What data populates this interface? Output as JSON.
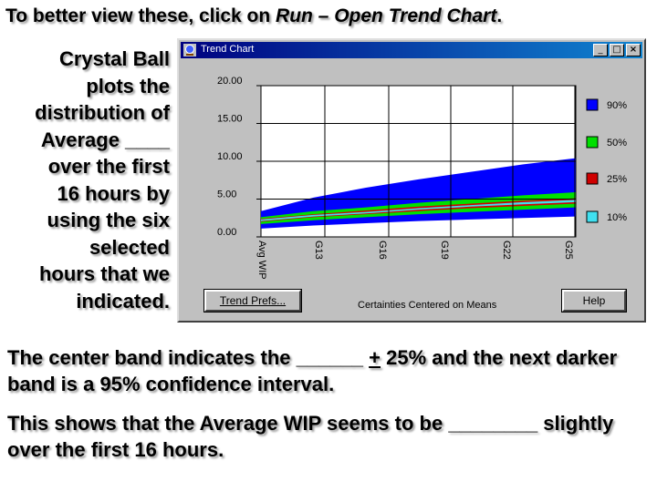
{
  "headline": {
    "prefix": "To better view these, click on ",
    "menu_path": "Run – Open Trend Chart",
    "suffix": "."
  },
  "side_text": [
    "Crystal Ball",
    "plots the",
    "distribution of",
    "Average ____",
    "over the first",
    "16 hours by",
    "using the six",
    "selected",
    "hours that we",
    "indicated."
  ],
  "bottom_text_1": {
    "part1": "The center band indicates the ______ ",
    "pm": "+",
    "part2": " 25% and the next darker band is a 95% confidence interval."
  },
  "bottom_text_2": "This shows that the Average WIP seems to be ________ slightly over the first 16 hours.",
  "window": {
    "title": "Trend Chart",
    "minimize_label": "_",
    "maximize_label": "□",
    "close_label": "×",
    "trend_prefs_label": "Trend Prefs...",
    "help_label": "Help",
    "footer_label": "Certainties Centered on Means"
  },
  "chart_data": {
    "type": "area",
    "y_ticks": [
      "20.00",
      "15.00",
      "10.00",
      "5.00",
      "0.00"
    ],
    "ylim": [
      0,
      20
    ],
    "x_axis_title": "Avg WIP",
    "x_ticks": [
      "G13",
      "G16",
      "G19",
      "G22",
      "G25"
    ],
    "legend": [
      {
        "label": "90%",
        "color": "#0000ff"
      },
      {
        "label": "50%",
        "color": "#00e000"
      },
      {
        "label": "25%",
        "color": "#d00000"
      },
      {
        "label": "10%",
        "color": "#40e0f0"
      }
    ],
    "bands": {
      "band_90": {
        "upper": [
          3.4,
          5.2,
          6.5,
          7.6,
          8.6,
          9.6,
          10.4
        ],
        "lower": [
          1.1,
          1.5,
          1.8,
          2.1,
          2.3,
          2.5,
          2.7
        ]
      },
      "band_50": {
        "upper": [
          2.6,
          3.4,
          3.9,
          4.5,
          5.0,
          5.5,
          5.9
        ],
        "lower": [
          1.7,
          2.2,
          2.6,
          3.0,
          3.3,
          3.6,
          3.9
        ]
      },
      "band_25": {
        "upper": [
          2.4,
          3.0,
          3.5,
          4.0,
          4.4,
          4.8,
          5.1
        ],
        "lower": [
          2.0,
          2.6,
          3.0,
          3.4,
          3.8,
          4.1,
          4.4
        ]
      },
      "band_10": {
        "upper": [
          2.3,
          2.9,
          3.3,
          3.8,
          4.2,
          4.6,
          4.9
        ],
        "lower": [
          2.1,
          2.7,
          3.1,
          3.6,
          4.0,
          4.3,
          4.6
        ]
      }
    }
  }
}
